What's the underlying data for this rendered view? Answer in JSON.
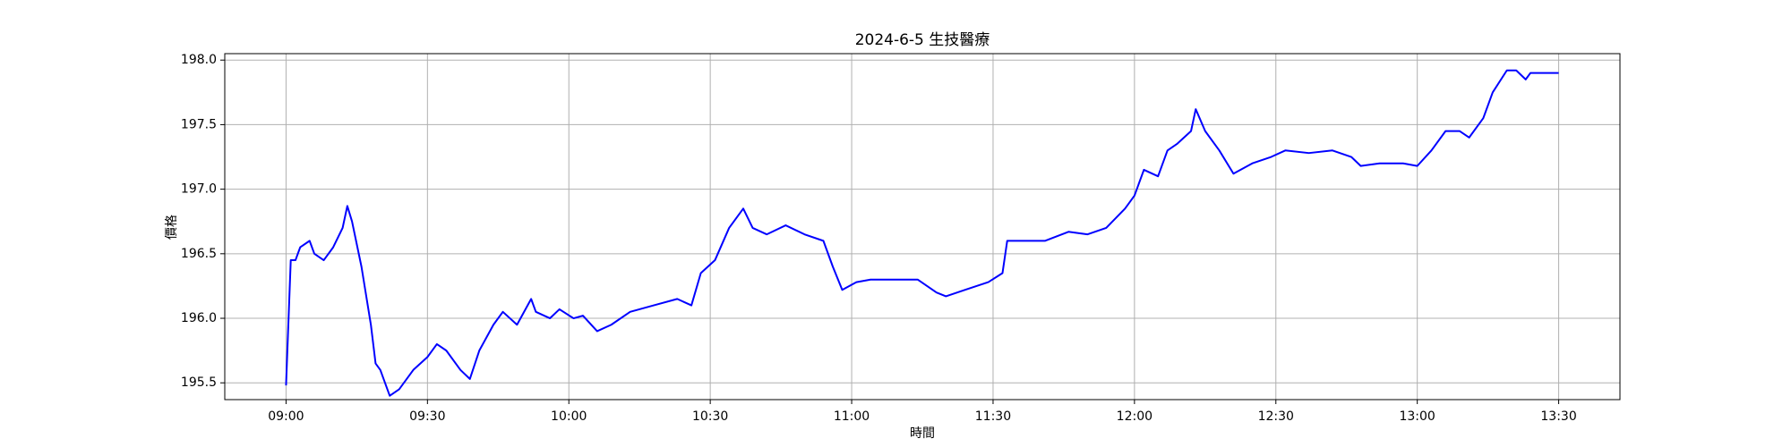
{
  "chart_data": {
    "type": "line",
    "title": "2024-6-5 生技醫療",
    "x_label": "時間",
    "y_label": "價格",
    "x": [
      "09:00",
      "09:01",
      "09:02",
      "09:03",
      "09:05",
      "09:06",
      "09:08",
      "09:10",
      "09:12",
      "09:13",
      "09:14",
      "09:16",
      "09:18",
      "09:19",
      "09:20",
      "09:22",
      "09:24",
      "09:27",
      "09:30",
      "09:32",
      "09:34",
      "09:37",
      "09:39",
      "09:41",
      "09:44",
      "09:46",
      "09:49",
      "09:52",
      "09:53",
      "09:56",
      "09:58",
      "10:01",
      "10:03",
      "10:06",
      "10:09",
      "10:13",
      "10:18",
      "10:23",
      "10:26",
      "10:28",
      "10:31",
      "10:34",
      "10:37",
      "10:39",
      "10:42",
      "10:46",
      "10:50",
      "10:54",
      "10:56",
      "10:58",
      "11:01",
      "11:04",
      "11:09",
      "11:14",
      "11:18",
      "11:20",
      "11:24",
      "11:29",
      "11:32",
      "11:33",
      "11:37",
      "11:41",
      "11:46",
      "11:50",
      "11:54",
      "11:58",
      "12:00",
      "12:02",
      "12:05",
      "12:07",
      "12:09",
      "12:12",
      "12:13",
      "12:15",
      "12:18",
      "12:21",
      "12:25",
      "12:29",
      "12:32",
      "12:37",
      "12:42",
      "12:46",
      "12:48",
      "12:52",
      "12:57",
      "13:00",
      "13:03",
      "13:06",
      "13:09",
      "13:11",
      "13:14",
      "13:16",
      "13:19",
      "13:21",
      "13:23",
      "13:24",
      "13:30"
    ],
    "series": [
      {
        "name": "價格",
        "color": "#0000ff",
        "values": [
          195.48,
          196.45,
          196.45,
          196.55,
          196.6,
          196.5,
          196.45,
          196.55,
          196.7,
          196.87,
          196.75,
          196.4,
          195.95,
          195.65,
          195.6,
          195.4,
          195.45,
          195.6,
          195.7,
          195.8,
          195.75,
          195.6,
          195.53,
          195.75,
          195.95,
          196.05,
          195.95,
          196.15,
          196.05,
          196.0,
          196.07,
          196.0,
          196.02,
          195.9,
          195.95,
          196.05,
          196.1,
          196.15,
          196.1,
          196.35,
          196.45,
          196.7,
          196.85,
          196.7,
          196.65,
          196.72,
          196.65,
          196.6,
          196.4,
          196.22,
          196.28,
          196.3,
          196.3,
          196.3,
          196.2,
          196.17,
          196.22,
          196.28,
          196.35,
          196.6,
          196.6,
          196.6,
          196.67,
          196.65,
          196.7,
          196.85,
          196.95,
          197.15,
          197.1,
          197.3,
          197.35,
          197.45,
          197.62,
          197.45,
          197.3,
          197.12,
          197.2,
          197.25,
          197.3,
          197.28,
          197.3,
          197.25,
          197.18,
          197.2,
          197.2,
          197.18,
          197.3,
          197.45,
          197.45,
          197.4,
          197.55,
          197.75,
          197.92,
          197.92,
          197.85,
          197.9,
          197.9
        ]
      }
    ],
    "xlim": [
      "08:47",
      "13:43"
    ],
    "xticks": [
      "09:00",
      "09:30",
      "10:00",
      "10:30",
      "11:00",
      "11:30",
      "12:00",
      "12:30",
      "13:00",
      "13:30"
    ],
    "ylim": [
      195.37,
      198.05
    ],
    "yticks": [
      {
        "value": 195.5,
        "label": "195.5"
      },
      {
        "value": 196,
        "label": "196.0"
      },
      {
        "value": 196.5,
        "label": "196.5"
      },
      {
        "value": 197,
        "label": "197.0"
      },
      {
        "value": 197.5,
        "label": "197.5"
      },
      {
        "value": 198,
        "label": "198.0"
      }
    ],
    "grid": true
  }
}
